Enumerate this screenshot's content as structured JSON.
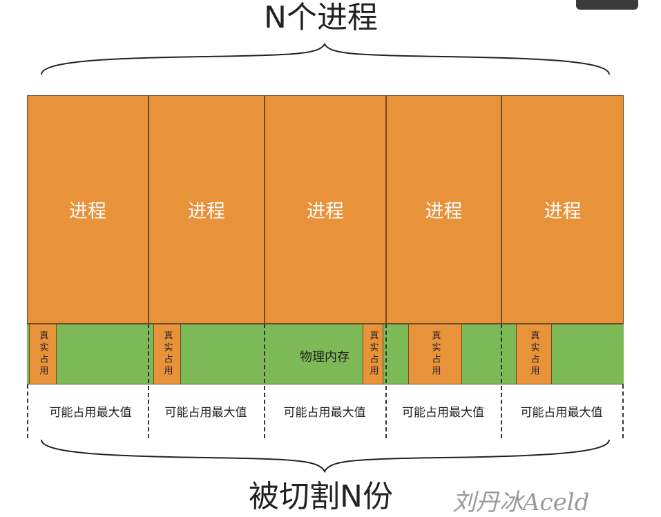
{
  "top_title": "N个进程",
  "bottom_title": "被切割N份",
  "process_label": "进程",
  "real_usage_label": "真实占用",
  "max_usage_label": "可能占用最大值",
  "physical_memory_label": "物理内存",
  "watermark": "刘丹冰Aceld",
  "colors": {
    "process": "#E8923A",
    "memory": "#7DB956"
  }
}
